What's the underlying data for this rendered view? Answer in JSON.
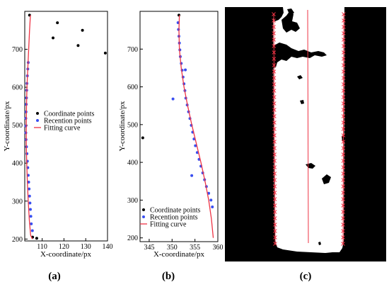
{
  "chart_data": [
    {
      "type": "scatter",
      "panel_label": "(a)",
      "xlabel": "X-coordinate/px",
      "ylabel": "Y-coordinate/px",
      "xlim": [
        102,
        140
      ],
      "ylim": [
        195,
        800
      ],
      "xticks": [
        110,
        120,
        130,
        140
      ],
      "yticks": [
        200,
        300,
        400,
        500,
        600,
        700
      ],
      "legend": {
        "placement": "center-right",
        "entries": [
          "Coordinate points",
          "Recention points",
          "Fitting curve"
        ]
      },
      "series": [
        {
          "name": "Coordinate points",
          "kind": "points",
          "color": "#000000",
          "x": [
            104.2,
            115,
            117,
            126.5,
            128.5,
            139,
            105.6,
            107.5
          ],
          "y": [
            790,
            730,
            770,
            710,
            750,
            690,
            205,
            202
          ]
        },
        {
          "name": "Recention points",
          "kind": "points",
          "color": "#3a4ff0",
          "x": [
            103.6,
            103.4,
            103.2,
            103.0,
            102.9,
            102.8,
            102.7,
            102.6,
            102.5,
            102.5,
            102.5,
            102.6,
            102.8,
            103.0,
            103.2,
            103.4,
            103.6,
            103.8,
            104.0,
            104.2,
            104.4,
            104.6,
            104.8,
            105.0,
            105.5
          ],
          "y": [
            665,
            648,
            630,
            610,
            592,
            572,
            555,
            535,
            518,
            498,
            480,
            462,
            443,
            425,
            405,
            388,
            368,
            350,
            332,
            313,
            295,
            278,
            260,
            240,
            222
          ]
        },
        {
          "name": "Fitting curve",
          "kind": "line",
          "color": "#ee3344",
          "x": [
            104.6,
            104.2,
            103.8,
            103.4,
            103.0,
            102.8,
            102.7,
            102.7,
            102.9,
            103.2,
            103.6,
            104.1,
            104.7,
            105.5
          ],
          "y": [
            790,
            750,
            700,
            650,
            600,
            550,
            500,
            450,
            400,
            350,
            300,
            250,
            210,
            200
          ]
        }
      ]
    },
    {
      "type": "scatter",
      "panel_label": "(b)",
      "xlabel": "X-coordinate/px",
      "ylabel": "Y-coordinate/px",
      "xlim": [
        343,
        360
      ],
      "ylim": [
        190,
        800
      ],
      "xticks": [
        345,
        350,
        355,
        360
      ],
      "yticks": [
        200,
        300,
        400,
        500,
        600,
        700
      ],
      "legend": {
        "placement": "lower-right",
        "entries": [
          "Coordinate points",
          "Recention points",
          "Fitting curve"
        ]
      },
      "series": [
        {
          "name": "Coordinate points",
          "kind": "points",
          "color": "#000000",
          "x": [
            343.6,
            351.5
          ],
          "y": [
            465,
            790
          ]
        },
        {
          "name": "Recention points",
          "kind": "points",
          "color": "#3a4ff0",
          "x": [
            351.3,
            351.4,
            351.5,
            351.6,
            351.7,
            351.8,
            352.0,
            352.2,
            352.4,
            352.6,
            352.8,
            353.0,
            353.3,
            353.6,
            353.9,
            354.2,
            354.5,
            354.8,
            355.1,
            355.5,
            355.9,
            356.3,
            356.7,
            357.1,
            357.5,
            358.0,
            358.5,
            358.8,
            350.2,
            352.9,
            354.3
          ],
          "y": [
            770,
            752,
            734,
            716,
            698,
            680,
            662,
            644,
            626,
            608,
            590,
            570,
            552,
            534,
            516,
            498,
            480,
            462,
            444,
            426,
            408,
            390,
            372,
            354,
            336,
            318,
            300,
            282,
            568,
            645,
            365
          ]
        },
        {
          "name": "Fitting curve",
          "kind": "line",
          "color": "#ee3344",
          "x": [
            351.6,
            351.5,
            351.6,
            352.0,
            352.6,
            353.4,
            354.3,
            355.3,
            356.3,
            357.2,
            358.0,
            358.6,
            359.0
          ],
          "y": [
            790,
            750,
            700,
            650,
            600,
            550,
            500,
            450,
            400,
            350,
            300,
            250,
            200
          ]
        }
      ]
    }
  ],
  "panel_c": {
    "label": "(c)"
  }
}
